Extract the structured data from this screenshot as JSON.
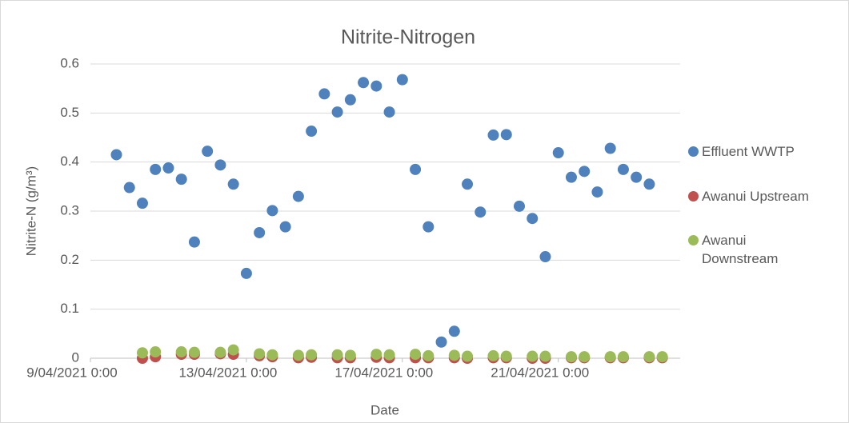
{
  "chart_data": {
    "type": "scatter",
    "title": "Nitrite-Nitrogen",
    "x_label": "Date",
    "y_label": "Nitrite-N (g/m³)",
    "xlim": [
      "2021-04-09T00:00",
      "2021-04-24T03:00"
    ],
    "xticks": [
      {
        "value": "2021-04-09T00:00",
        "label": "9/04/2021 0:00"
      },
      {
        "value": "2021-04-13T00:00",
        "label": "13/04/2021 0:00"
      },
      {
        "value": "2021-04-17T00:00",
        "label": "17/04/2021 0:00"
      },
      {
        "value": "2021-04-21T00:00",
        "label": "21/04/2021 0:00"
      }
    ],
    "ylim": [
      0,
      0.6
    ],
    "yticks": [
      0,
      0.1,
      0.2,
      0.3,
      0.4,
      0.5,
      0.6
    ],
    "grid": true,
    "legend": "right",
    "series": [
      {
        "name": "Effluent WWTP",
        "color": "#4f81bd",
        "x": [
          "2021-04-09T16:00",
          "2021-04-10T00:00",
          "2021-04-10T08:00",
          "2021-04-10T16:00",
          "2021-04-11T00:00",
          "2021-04-11T08:00",
          "2021-04-11T16:00",
          "2021-04-12T00:00",
          "2021-04-12T08:00",
          "2021-04-12T16:00",
          "2021-04-13T00:00",
          "2021-04-13T08:00",
          "2021-04-13T16:00",
          "2021-04-14T00:00",
          "2021-04-14T08:00",
          "2021-04-14T16:00",
          "2021-04-15T00:00",
          "2021-04-15T08:00",
          "2021-04-15T16:00",
          "2021-04-16T00:00",
          "2021-04-16T08:00",
          "2021-04-16T16:00",
          "2021-04-17T00:00",
          "2021-04-17T08:00",
          "2021-04-17T16:00",
          "2021-04-18T00:00",
          "2021-04-18T08:00",
          "2021-04-18T16:00",
          "2021-04-19T00:00",
          "2021-04-19T08:00",
          "2021-04-19T16:00",
          "2021-04-20T00:00",
          "2021-04-20T08:00",
          "2021-04-20T16:00",
          "2021-04-21T00:00",
          "2021-04-21T08:00",
          "2021-04-21T16:00",
          "2021-04-22T00:00",
          "2021-04-22T08:00",
          "2021-04-22T16:00",
          "2021-04-23T00:00",
          "2021-04-23T08:00"
        ],
        "values": [
          0.415,
          0.348,
          0.316,
          0.385,
          0.388,
          0.365,
          0.237,
          0.422,
          0.394,
          0.355,
          0.173,
          0.256,
          0.301,
          0.268,
          0.33,
          0.463,
          0.539,
          0.502,
          0.527,
          0.562,
          0.555,
          0.502,
          0.568,
          0.385,
          0.268,
          0.033,
          0.055,
          0.355,
          0.298,
          0.455,
          0.456,
          0.31,
          0.285,
          0.207,
          0.419,
          0.369,
          0.381,
          0.339,
          0.428,
          0.385,
          0.369,
          0.355
        ]
      },
      {
        "name": "Awanui Upstream",
        "color": "#c0504d",
        "x": [
          "2021-04-10T08:00",
          "2021-04-10T16:00",
          "2021-04-11T08:00",
          "2021-04-11T16:00",
          "2021-04-12T08:00",
          "2021-04-12T16:00",
          "2021-04-13T08:00",
          "2021-04-13T16:00",
          "2021-04-14T08:00",
          "2021-04-14T16:00",
          "2021-04-15T08:00",
          "2021-04-15T16:00",
          "2021-04-16T08:00",
          "2021-04-16T16:00",
          "2021-04-17T08:00",
          "2021-04-17T16:00",
          "2021-04-18T08:00",
          "2021-04-18T16:00",
          "2021-04-19T08:00",
          "2021-04-19T16:00",
          "2021-04-20T08:00",
          "2021-04-20T16:00",
          "2021-04-21T08:00",
          "2021-04-21T16:00",
          "2021-04-22T08:00",
          "2021-04-22T16:00",
          "2021-04-23T08:00",
          "2021-04-23T16:00"
        ],
        "values": [
          0.0,
          0.003,
          0.008,
          0.008,
          0.009,
          0.008,
          0.005,
          0.003,
          0.001,
          0.002,
          0.001,
          0.001,
          0.002,
          0.001,
          0.001,
          0.001,
          0.001,
          0.0,
          0.001,
          0.001,
          0.0,
          0.0,
          0.001,
          0.001,
          0.001,
          0.001,
          0.001,
          0.001
        ]
      },
      {
        "name": "Awanui Downstream",
        "color": "#9bbb59",
        "x": [
          "2021-04-10T08:00",
          "2021-04-10T16:00",
          "2021-04-11T08:00",
          "2021-04-11T16:00",
          "2021-04-12T08:00",
          "2021-04-12T16:00",
          "2021-04-13T08:00",
          "2021-04-13T16:00",
          "2021-04-14T08:00",
          "2021-04-14T16:00",
          "2021-04-15T08:00",
          "2021-04-15T16:00",
          "2021-04-16T08:00",
          "2021-04-16T16:00",
          "2021-04-17T08:00",
          "2021-04-17T16:00",
          "2021-04-18T08:00",
          "2021-04-18T16:00",
          "2021-04-19T08:00",
          "2021-04-19T16:00",
          "2021-04-20T08:00",
          "2021-04-20T16:00",
          "2021-04-21T08:00",
          "2021-04-21T16:00",
          "2021-04-22T08:00",
          "2021-04-22T16:00",
          "2021-04-23T08:00",
          "2021-04-23T16:00"
        ],
        "values": [
          0.011,
          0.013,
          0.013,
          0.012,
          0.012,
          0.017,
          0.009,
          0.007,
          0.006,
          0.007,
          0.007,
          0.006,
          0.008,
          0.007,
          0.008,
          0.005,
          0.006,
          0.004,
          0.005,
          0.004,
          0.004,
          0.004,
          0.003,
          0.003,
          0.003,
          0.003,
          0.003,
          0.003
        ]
      }
    ]
  }
}
